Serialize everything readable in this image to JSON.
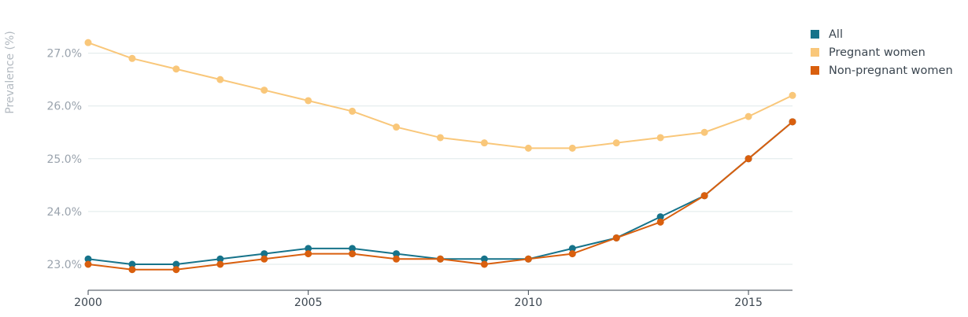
{
  "chart_data": {
    "type": "line",
    "ylabel": "Prevalence (%)",
    "x": [
      2000,
      2001,
      2002,
      2003,
      2004,
      2005,
      2006,
      2007,
      2008,
      2009,
      2010,
      2011,
      2012,
      2013,
      2014,
      2015,
      2016
    ],
    "x_ticks": [
      "2000",
      "2005",
      "2010",
      "2015"
    ],
    "y_ticks": [
      "23.0%",
      "24.0%",
      "25.0%",
      "26.0%",
      "27.0%"
    ],
    "ylim": [
      22.5,
      27.7
    ],
    "grid": true,
    "legend_position": "top-right",
    "series": [
      {
        "name": "All",
        "color": "#16738a",
        "values": [
          23.1,
          23.0,
          23.0,
          23.1,
          23.2,
          23.3,
          23.3,
          23.2,
          23.1,
          23.1,
          23.1,
          23.3,
          23.5,
          23.9,
          24.3,
          25.0,
          25.7
        ]
      },
      {
        "name": "Pregnant women",
        "color": "#f9c77a",
        "values": [
          27.2,
          26.9,
          26.7,
          26.5,
          26.3,
          26.1,
          25.9,
          25.6,
          25.4,
          25.3,
          25.2,
          25.2,
          25.3,
          25.4,
          25.5,
          25.8,
          26.2
        ]
      },
      {
        "name": "Non-pregnant women",
        "color": "#d95f0e",
        "values": [
          23.0,
          22.9,
          22.9,
          23.0,
          23.1,
          23.2,
          23.2,
          23.1,
          23.1,
          23.0,
          23.1,
          23.2,
          23.5,
          23.8,
          24.3,
          25.0,
          25.7
        ]
      }
    ]
  }
}
